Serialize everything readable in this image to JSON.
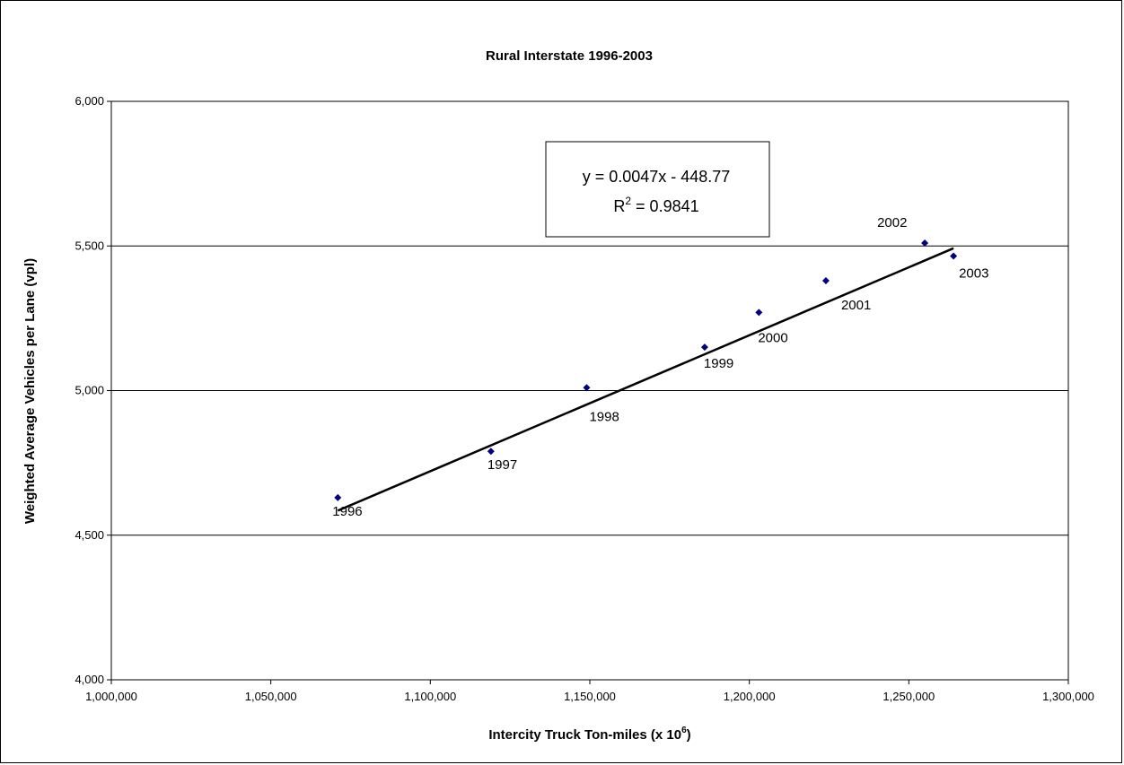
{
  "chart_data": {
    "type": "scatter",
    "title": "Rural Interstate 1996-2003",
    "xlabel": "Intercity Truck Ton-miles (x 10",
    "xlabel_sup": "6",
    "xlabel_end": ")",
    "ylabel": "Weighted Average Vehicles per Lane (vpl)",
    "xlim": [
      1000000,
      1300000
    ],
    "ylim": [
      4000,
      6000
    ],
    "x_ticks": [
      1000000,
      1050000,
      1100000,
      1150000,
      1200000,
      1250000,
      1300000
    ],
    "x_tick_labels": [
      "1,000,000",
      "1,050,000",
      "1,100,000",
      "1,150,000",
      "1,200,000",
      "1,250,000",
      "1,300,000"
    ],
    "y_ticks": [
      4000,
      4500,
      5000,
      5500,
      6000
    ],
    "y_tick_labels": [
      "4,000",
      "4,500",
      "5,000",
      "5,500",
      "6,000"
    ],
    "grid": "horizontal",
    "points": [
      {
        "x": 1071000,
        "y": 4630,
        "label": "1996"
      },
      {
        "x": 1119000,
        "y": 4790,
        "label": "1997"
      },
      {
        "x": 1149000,
        "y": 5010,
        "label": "1998"
      },
      {
        "x": 1186000,
        "y": 5150,
        "label": "1999"
      },
      {
        "x": 1203000,
        "y": 5270,
        "label": "2000"
      },
      {
        "x": 1224000,
        "y": 5380,
        "label": "2001"
      },
      {
        "x": 1255000,
        "y": 5510,
        "label": "2002"
      },
      {
        "x": 1264000,
        "y": 5465,
        "label": "2003"
      }
    ],
    "trendline": {
      "x_range": [
        1071000,
        1264000
      ],
      "equation": "y = 0.0047x - 448.77",
      "r2_prefix": "R",
      "r2_sup": "2",
      "r2_value": " = 0.9841"
    },
    "colors": {
      "marker": "#000080",
      "line": "#000000",
      "grid": "#000000"
    }
  }
}
